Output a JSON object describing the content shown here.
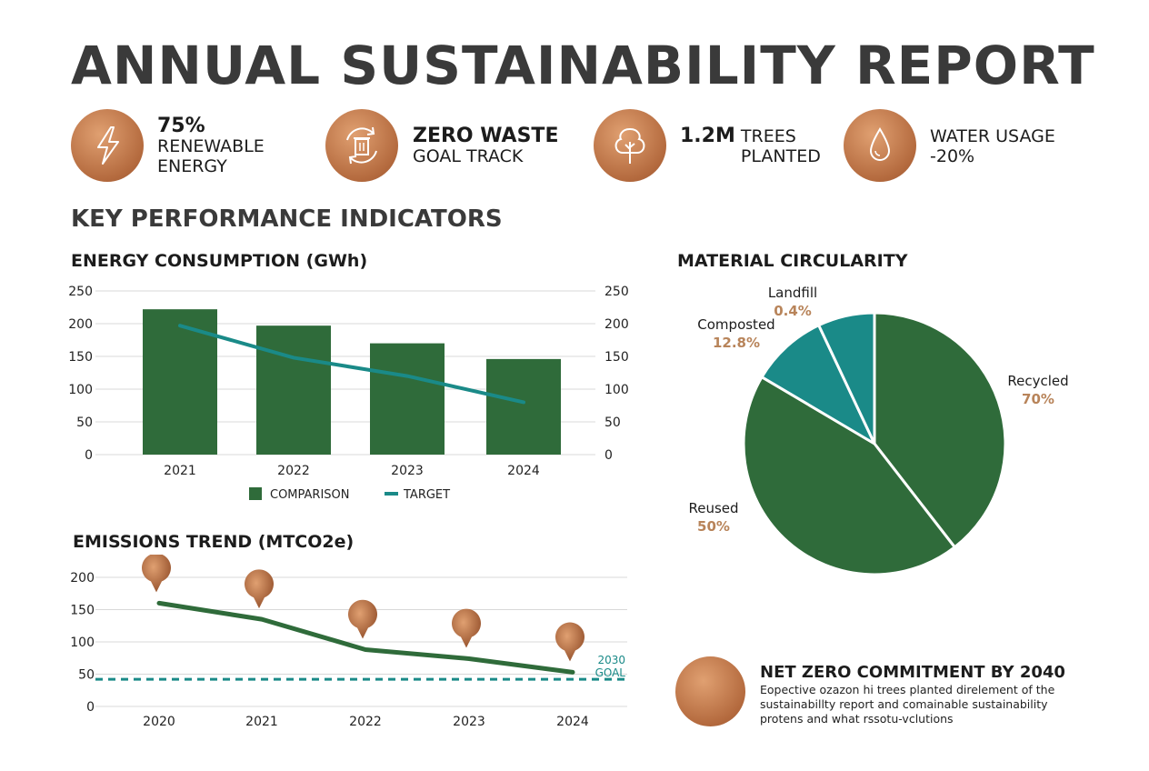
{
  "title": "ANNUAL SUSTAINABILITY REPORT",
  "stats": [
    {
      "icon": "lightning-bolt-icon",
      "bold": "75%",
      "text": "RENEWABLE ENERGY"
    },
    {
      "icon": "recycle-bin-icon",
      "bold": "ZERO WASTE",
      "text": "GOAL TRACK"
    },
    {
      "icon": "tree-icon",
      "bold": "1.2M",
      "text": "TREES PLANTED"
    },
    {
      "icon": "water-drop-icon",
      "bold": "",
      "text": "WATER USAGE -20%"
    }
  ],
  "kpi_heading": "KEY PERFORMANCE INDICATORS",
  "colors": {
    "green": "#2f6b3a",
    "teal": "#1a8a88",
    "copper": "#b8713f",
    "title": "#3a3a3a"
  },
  "chart_data": [
    {
      "type": "bar",
      "title": "ENERGY CONSUMPTION (GWh)",
      "categories": [
        "2021",
        "2022",
        "2023",
        "2024"
      ],
      "ylim": [
        0,
        250
      ],
      "yticks": [
        "0",
        "50",
        "100",
        "150",
        "200",
        "250"
      ],
      "y2ticks": [
        "0",
        "50",
        "100",
        "150",
        "200",
        "250"
      ],
      "grid": true,
      "legend": "bottom",
      "series": [
        {
          "name": "COMPARISON",
          "type": "bar",
          "values": [
            222,
            197,
            170,
            146
          ],
          "color": "#2f6b3a"
        },
        {
          "name": "TARGET",
          "type": "line",
          "values": [
            197,
            148,
            120,
            80
          ],
          "color": "#1a8a88"
        }
      ]
    },
    {
      "type": "pie",
      "title": "MATERIAL CIRCULARITY",
      "slices": [
        {
          "label": "Recycled",
          "value_label": "70%",
          "share": 0.395,
          "color": "#2f6b3a"
        },
        {
          "label": "Reused",
          "value_label": "50%",
          "share": 0.44,
          "color": "#2f6b3a"
        },
        {
          "label": "Composted",
          "value_label": "12.8%",
          "share": 0.095,
          "color": "#1a8a88"
        },
        {
          "label": "Landfill",
          "value_label": "0.4%",
          "share": 0.07,
          "color": "#1a8a88"
        }
      ]
    },
    {
      "type": "line",
      "title": "EMISSIONS TREND (MTCO2e)",
      "categories": [
        "2020",
        "2021",
        "2022",
        "2023",
        "2024"
      ],
      "ylim": [
        0,
        200
      ],
      "yticks": [
        "0",
        "50",
        "100",
        "150",
        "200"
      ],
      "grid": true,
      "series": [
        {
          "values": [
            160,
            135,
            88,
            74,
            53
          ],
          "color": "#2f6b3a"
        }
      ],
      "goal": {
        "value": 42,
        "label_line1": "2030",
        "label_line2": "GOAL",
        "color": "#1a8a88"
      }
    }
  ],
  "net_zero": {
    "title": "NET ZERO COMMITMENT BY 2040",
    "body": "Eopective ozazon hi trees planted direlement of the sustainabillty report and comainable sustainability protens and what rssotu-vclutions"
  }
}
